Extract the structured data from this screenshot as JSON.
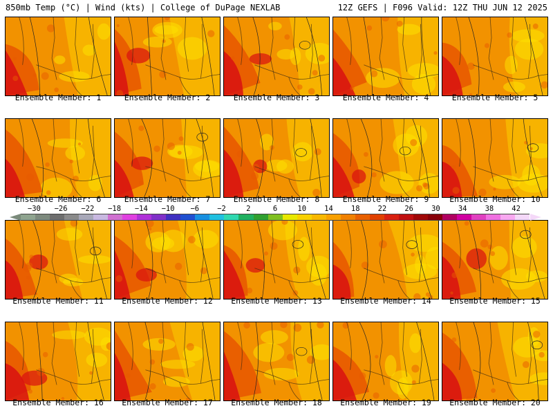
{
  "header": {
    "left": "850mb Temp (°C) | Wind (kts) | College of DuPage NEXLAB",
    "right": "12Z GEFS | F096 Valid: 12Z THU JUN 12 2025"
  },
  "members": [
    "Ensemble Member: 1",
    "Ensemble Member: 2",
    "Ensemble Member: 3",
    "Ensemble Member: 4",
    "Ensemble Member: 5",
    "Ensemble Member: 6",
    "Ensemble Member: 7",
    "Ensemble Member: 8",
    "Ensemble Member: 9",
    "Ensemble Member: 10",
    "Ensemble Member: 11",
    "Ensemble Member: 12",
    "Ensemble Member: 13",
    "Ensemble Member: 14",
    "Ensemble Member: 15",
    "Ensemble Member: 16",
    "Ensemble Member: 17",
    "Ensemble Member: 18",
    "Ensemble Member: 19",
    "Ensemble Member: 20"
  ],
  "colorbar": {
    "labels": [
      "−30",
      "−26",
      "−22",
      "−18",
      "−14",
      "−10",
      "−6",
      "−2",
      "2",
      "6",
      "10",
      "14",
      "18",
      "22",
      "26",
      "30",
      "34",
      "38",
      "42"
    ],
    "colors": [
      "#8fa48f",
      "#7d8a7d",
      "#6e6e6e",
      "#8a8a8a",
      "#a8a8b8",
      "#c8b8e0",
      "#d070d0",
      "#e040e0",
      "#b030d8",
      "#8030c8",
      "#4030c0",
      "#2050d0",
      "#1890e0",
      "#20c0e0",
      "#30d8b0",
      "#20b060",
      "#30a030",
      "#80c020",
      "#e8e800",
      "#f8d000",
      "#f8b800",
      "#f8a000",
      "#f08000",
      "#e86000",
      "#e04000",
      "#d82010",
      "#c01010",
      "#a00808",
      "#880008",
      "#b00060",
      "#d000a0",
      "#e040c0",
      "#f070e0",
      "#f8a8f0",
      "#f4d8f8"
    ]
  },
  "legend_colors": {
    "warm_max": "#d81010",
    "warm_high": "#e85a00",
    "warm_mid": "#f29200",
    "warm_low": "#f8b800",
    "cool": "#fde000"
  }
}
